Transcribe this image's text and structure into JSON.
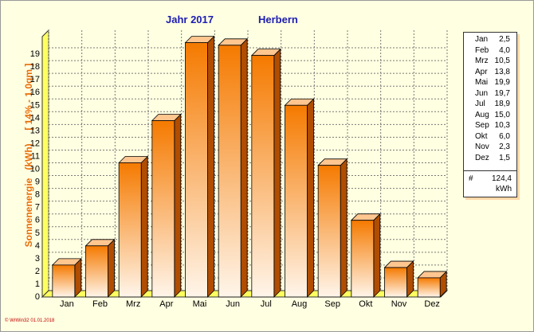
{
  "header": {
    "year": "Jahr  2017",
    "location": "Herbern"
  },
  "y_axis_label": "Sonnenenergie   (kWh)     [ 14% - 1.0qm ]",
  "legend": {
    "total_symbol": "#",
    "total_value": "124,4",
    "total_unit": "kWh"
  },
  "footer": "© WrWin32  01.01.2018",
  "colors": {
    "bar_light": "#fff5ea",
    "bar_dark": "#f57a00",
    "bar_side": "#b04d00",
    "bar_top": "#ffc690",
    "floor": "#ffff60",
    "title": "#1c1cb4",
    "axis_label": "#e86d0a"
  },
  "chart_data": {
    "type": "bar",
    "categories": [
      "Jan",
      "Feb",
      "Mrz",
      "Apr",
      "Mai",
      "Jun",
      "Jul",
      "Aug",
      "Sep",
      "Okt",
      "Nov",
      "Dez"
    ],
    "values": [
      2.5,
      4.0,
      10.5,
      13.8,
      19.9,
      19.7,
      18.9,
      15.0,
      10.3,
      6.0,
      2.3,
      1.5
    ],
    "value_labels": [
      "2,5",
      "4,0",
      "10,5",
      "13,8",
      "19,9",
      "19,7",
      "18,9",
      "15,0",
      "10,3",
      "6,0",
      "2,3",
      "1,5"
    ],
    "ylabel": "Sonnenenergie   (kWh)     [ 14% - 1.0qm ]",
    "ylim": [
      0,
      20
    ],
    "yticks": [
      0,
      1,
      2,
      3,
      4,
      5,
      6,
      7,
      8,
      9,
      10,
      11,
      12,
      13,
      14,
      15,
      16,
      17,
      18,
      19
    ],
    "grid": true,
    "legend_position": "right"
  }
}
